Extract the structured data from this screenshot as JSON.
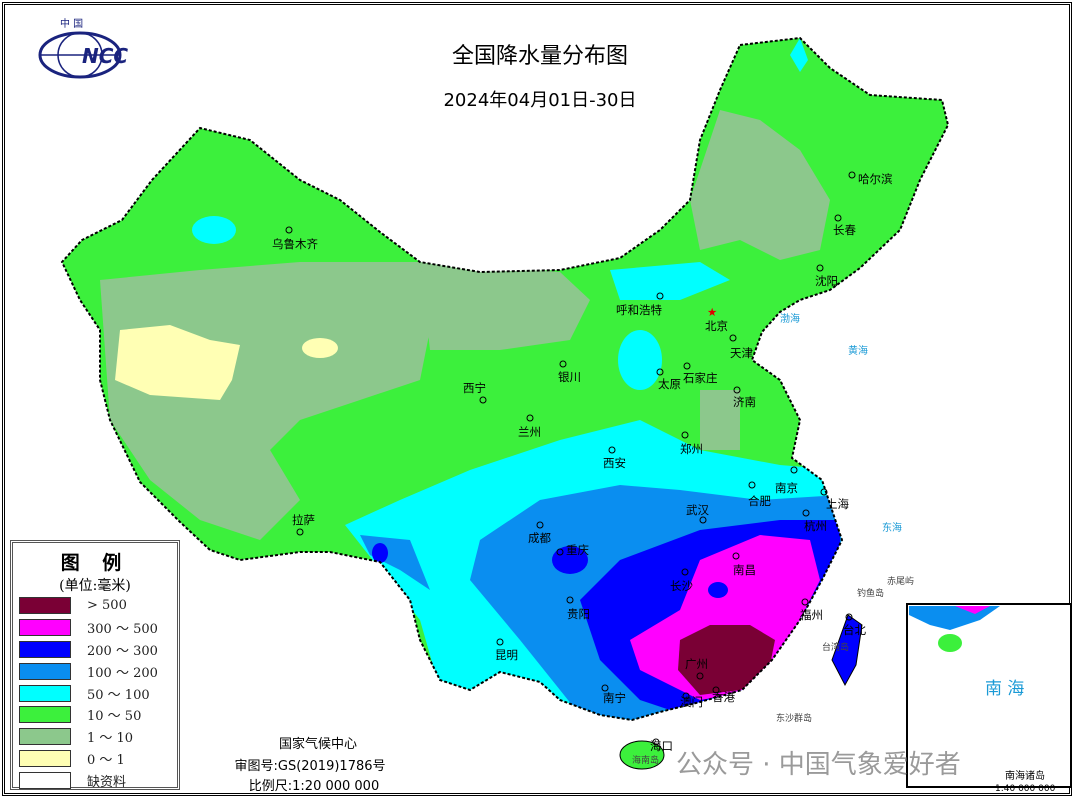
{
  "header": {
    "title": "全国降水量分布图",
    "subtitle": "2024年04月01日-30日",
    "logo_text": "中国 NCC"
  },
  "legend": {
    "title": "图 例",
    "unit": "(单位:毫米)",
    "items": [
      {
        "label": "> 500",
        "color": "#7a0035"
      },
      {
        "label": "300 ～ 500",
        "color": "#ff00ff"
      },
      {
        "label": "200 ～ 300",
        "color": "#0000ff"
      },
      {
        "label": "100 ～ 200",
        "color": "#0a8ef0"
      },
      {
        "label": "50 ～ 100",
        "color": "#00ffff"
      },
      {
        "label": "10 ～ 50",
        "color": "#3cf03c"
      },
      {
        "label": "1 ～ 10",
        "color": "#8cc88c"
      },
      {
        "label": "0 ～ 1",
        "color": "#ffffb4"
      },
      {
        "label": "缺资料",
        "color": "#ffffff"
      }
    ]
  },
  "credits": {
    "org": "国家气候中心",
    "approval": "审图号:GS(2019)1786号",
    "scale": "比例尺:1:20 000 000"
  },
  "inset": {
    "sea": "南 海",
    "islands": "南海诸岛",
    "scale": "1:40 000 000"
  },
  "cities": [
    "乌鲁木齐",
    "哈尔滨",
    "长春",
    "沈阳",
    "呼和浩特",
    "北京",
    "天津",
    "石家庄",
    "太原",
    "济南",
    "银川",
    "西宁",
    "兰州",
    "西安",
    "郑州",
    "南京",
    "合肥",
    "上海",
    "武汉",
    "杭州",
    "成都",
    "重庆",
    "拉萨",
    "长沙",
    "南昌",
    "贵阳",
    "福州",
    "台北",
    "昆明",
    "广州",
    "南宁",
    "澳门",
    "香港",
    "海口"
  ],
  "places": {
    "taiwan": "台湾岛",
    "diaoyu": "钓鱼岛",
    "chiwei": "赤尾屿",
    "dongsha": "东沙群岛",
    "hainan": "海南岛"
  },
  "seas": {
    "bohai": "渤海",
    "huanghai": "黄海",
    "donghai": "东海"
  },
  "watermark": "公众号 · 中国气象爱好者"
}
